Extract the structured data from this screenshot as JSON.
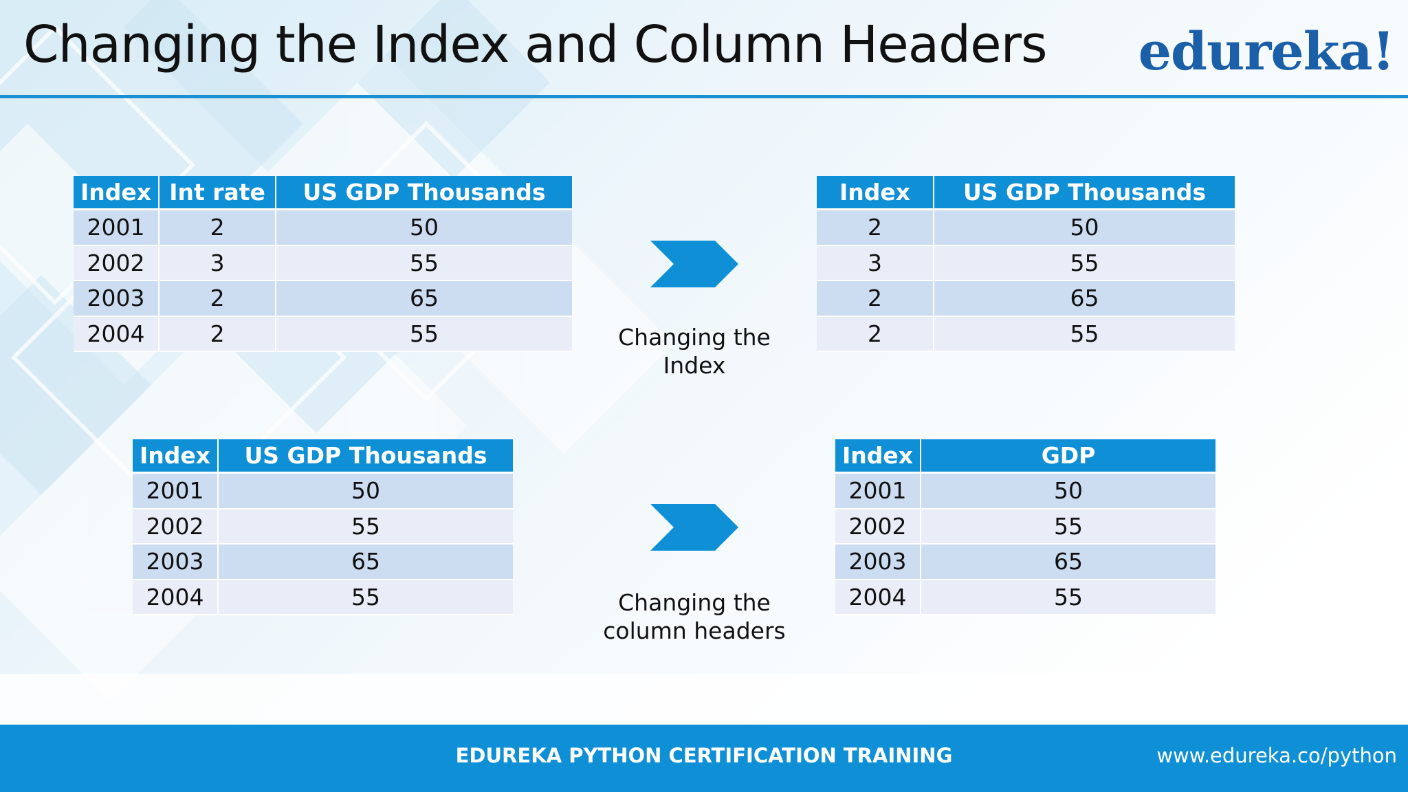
{
  "slide": {
    "title": "Changing the Index and Column Headers",
    "logo": "edureka!"
  },
  "tables": {
    "top_left": {
      "headers": [
        "Index",
        "Int rate",
        "US GDP Thousands"
      ],
      "rows": [
        [
          "2001",
          "2",
          "50"
        ],
        [
          "2002",
          "3",
          "55"
        ],
        [
          "2003",
          "2",
          "65"
        ],
        [
          "2004",
          "2",
          "55"
        ]
      ]
    },
    "top_right": {
      "headers": [
        "Index",
        "US GDP Thousands"
      ],
      "rows": [
        [
          "2",
          "50"
        ],
        [
          "3",
          "55"
        ],
        [
          "2",
          "65"
        ],
        [
          "2",
          "55"
        ]
      ]
    },
    "bottom_left": {
      "headers": [
        "Index",
        "US GDP Thousands"
      ],
      "rows": [
        [
          "2001",
          "50"
        ],
        [
          "2002",
          "55"
        ],
        [
          "2003",
          "65"
        ],
        [
          "2004",
          "55"
        ]
      ]
    },
    "bottom_right": {
      "headers": [
        "Index",
        "GDP"
      ],
      "rows": [
        [
          "2001",
          "50"
        ],
        [
          "2002",
          "55"
        ],
        [
          "2003",
          "65"
        ],
        [
          "2004",
          "55"
        ]
      ]
    }
  },
  "transitions": {
    "top_caption": "Changing the Index",
    "bottom_caption_line1": "Changing the",
    "bottom_caption_line2": "column headers"
  },
  "footer": {
    "center_text": "EDUREKA PYTHON CERTIFICATION TRAINING",
    "url": "www.edureka.co/python"
  },
  "colors": {
    "header_blue": "#0f8fd6",
    "row_dark": "#ccdcf1",
    "row_light": "#e8edf8",
    "logo_blue": "#1b5fa8",
    "rule_blue": "#1a8fd1"
  }
}
